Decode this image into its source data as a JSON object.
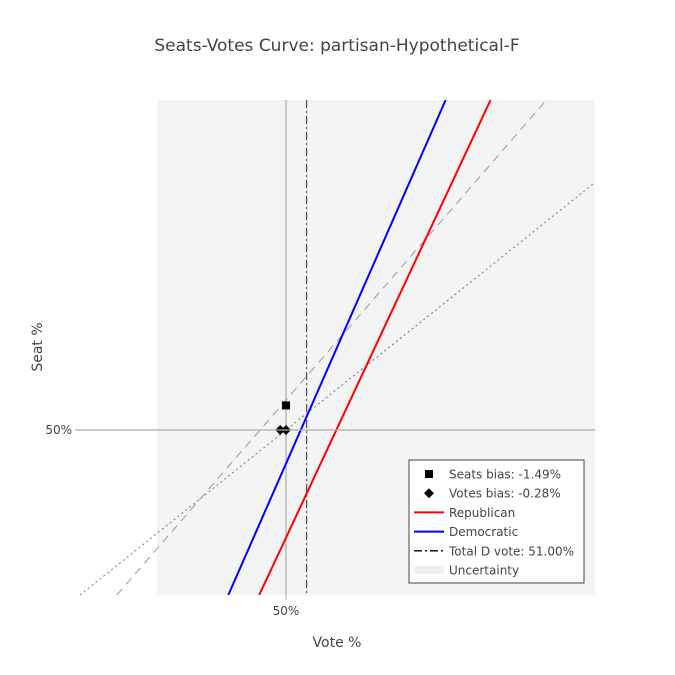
{
  "chart_data": {
    "type": "line",
    "title": "Seats-Votes Curve: partisan-Hypothetical-F",
    "xlabel": "Vote %",
    "ylabel": "Seat %",
    "xlim": [
      0.4,
      0.65
    ],
    "ylim": [
      0.4,
      0.7
    ],
    "x_ticks": [
      {
        "value": 0.5,
        "label": "50%"
      }
    ],
    "y_ticks": [
      {
        "value": 0.5,
        "label": "50%"
      }
    ],
    "grid": false,
    "legend_position": "bottom-right",
    "uncertainty_band": {
      "x": [
        0.4375,
        0.6875
      ],
      "color": "#f4f4f4"
    },
    "reference_lines": {
      "seats_50": {
        "value": 0.5,
        "color": "#aaaaaa"
      },
      "votes_50": {
        "value": 0.5,
        "color": "#aaaaaa"
      },
      "proportional": {
        "points": [
          [
            0.4,
            0.4
          ],
          [
            0.7,
            0.7
          ]
        ],
        "color": "#777777",
        "dash": "2,3"
      },
      "responsive": {
        "points": [
          [
            0.4179,
            0.4
          ],
          [
            0.6264,
            0.7
          ]
        ],
        "color": "#999999",
        "dash": "8,6"
      }
    },
    "total_d_vote": {
      "value": 0.51,
      "color": "#555555"
    },
    "series": [
      {
        "name": "Republican",
        "color": "#ff0000",
        "points": [
          [
            0.487,
            0.4
          ],
          [
            0.5993,
            0.7
          ]
        ]
      },
      {
        "name": "Democratic",
        "color": "#0000ff",
        "points": [
          [
            0.472,
            0.4
          ],
          [
            0.5775,
            0.7
          ]
        ]
      }
    ],
    "markers": [
      {
        "name": "Seats bias",
        "shape": "square",
        "color": "#000000",
        "x": 0.5,
        "y": 0.5149
      },
      {
        "name": "Votes bias",
        "shape": "diamond",
        "color": "#000000",
        "x": 0.4972,
        "y": 0.5
      },
      {
        "name": "Votes bias",
        "shape": "diamond",
        "color": "#000000",
        "x": 0.5,
        "y": 0.5
      }
    ],
    "legend": [
      {
        "label": "Seats bias: -1.49%",
        "symbol": "square",
        "color": "#000000"
      },
      {
        "label": "Votes bias: -0.28%",
        "symbol": "diamond",
        "color": "#000000"
      },
      {
        "label": "Republican",
        "symbol": "line",
        "color": "#ff0000"
      },
      {
        "label": "Democratic",
        "symbol": "line",
        "color": "#0000ff"
      },
      {
        "label": "Total D vote: 51.00%",
        "symbol": "dashdot",
        "color": "#000000"
      },
      {
        "label": "Uncertainty",
        "symbol": "band",
        "color": "#f0f0f0"
      }
    ]
  }
}
